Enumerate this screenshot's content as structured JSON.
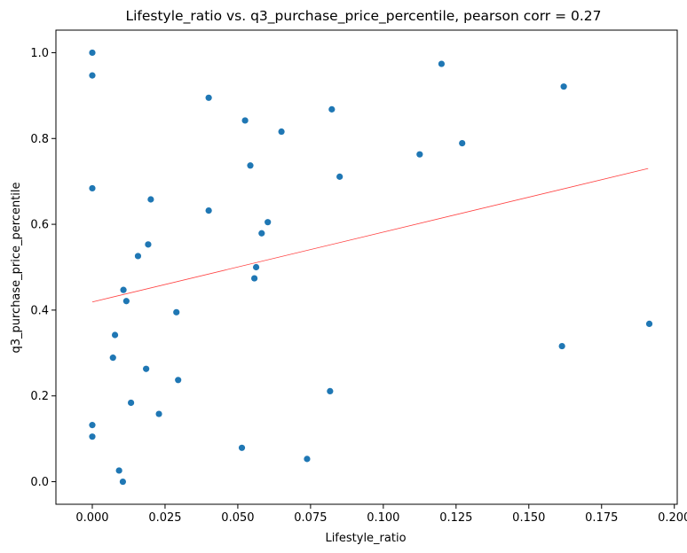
{
  "chart_data": {
    "type": "scatter",
    "title": "Lifestyle_ratio vs. q3_purchase_price_percentile, pearson corr = 0.27",
    "xlabel": "Lifestyle_ratio",
    "ylabel": "q3_purchase_price_percentile",
    "xlim": [
      -0.0125,
      0.201
    ],
    "ylim": [
      -0.0526,
      1.0526
    ],
    "xticks": [
      0.0,
      0.025,
      0.05,
      0.075,
      0.1,
      0.125,
      0.15,
      0.175,
      0.2
    ],
    "xtick_labels": [
      "0.000",
      "0.025",
      "0.050",
      "0.075",
      "0.100",
      "0.125",
      "0.150",
      "0.175",
      "0.200"
    ],
    "yticks": [
      0.0,
      0.2,
      0.4,
      0.6,
      0.8,
      1.0
    ],
    "ytick_labels": [
      "0.0",
      "0.2",
      "0.4",
      "0.6",
      "0.8",
      "1.0"
    ],
    "grid": false,
    "point_color": "#1f77b4",
    "trendline_color": "#ff0000",
    "trendline": {
      "x": [
        0.0,
        0.191
      ],
      "y": [
        0.419,
        0.73
      ]
    },
    "points": [
      {
        "x": 0.0,
        "y": 1.0
      },
      {
        "x": 0.0,
        "y": 0.947
      },
      {
        "x": 0.0,
        "y": 0.684
      },
      {
        "x": 0.0,
        "y": 0.132
      },
      {
        "x": 0.0,
        "y": 0.105
      },
      {
        "x": 0.0071,
        "y": 0.289
      },
      {
        "x": 0.0078,
        "y": 0.342
      },
      {
        "x": 0.0092,
        "y": 0.026
      },
      {
        "x": 0.0105,
        "y": 0.0
      },
      {
        "x": 0.0107,
        "y": 0.447
      },
      {
        "x": 0.0117,
        "y": 0.421
      },
      {
        "x": 0.0133,
        "y": 0.184
      },
      {
        "x": 0.0157,
        "y": 0.526
      },
      {
        "x": 0.0185,
        "y": 0.263
      },
      {
        "x": 0.0192,
        "y": 0.553
      },
      {
        "x": 0.0201,
        "y": 0.658
      },
      {
        "x": 0.0229,
        "y": 0.158
      },
      {
        "x": 0.0289,
        "y": 0.395
      },
      {
        "x": 0.0295,
        "y": 0.237
      },
      {
        "x": 0.04,
        "y": 0.895
      },
      {
        "x": 0.04,
        "y": 0.632
      },
      {
        "x": 0.0514,
        "y": 0.079
      },
      {
        "x": 0.0525,
        "y": 0.842
      },
      {
        "x": 0.0543,
        "y": 0.737
      },
      {
        "x": 0.0557,
        "y": 0.474
      },
      {
        "x": 0.0563,
        "y": 0.5
      },
      {
        "x": 0.0582,
        "y": 0.579
      },
      {
        "x": 0.0603,
        "y": 0.605
      },
      {
        "x": 0.065,
        "y": 0.816
      },
      {
        "x": 0.0738,
        "y": 0.053
      },
      {
        "x": 0.0817,
        "y": 0.211
      },
      {
        "x": 0.0823,
        "y": 0.868
      },
      {
        "x": 0.085,
        "y": 0.711
      },
      {
        "x": 0.1125,
        "y": 0.763
      },
      {
        "x": 0.12,
        "y": 0.974
      },
      {
        "x": 0.1271,
        "y": 0.789
      },
      {
        "x": 0.1614,
        "y": 0.316
      },
      {
        "x": 0.162,
        "y": 0.921
      },
      {
        "x": 0.1914,
        "y": 0.368
      }
    ]
  }
}
